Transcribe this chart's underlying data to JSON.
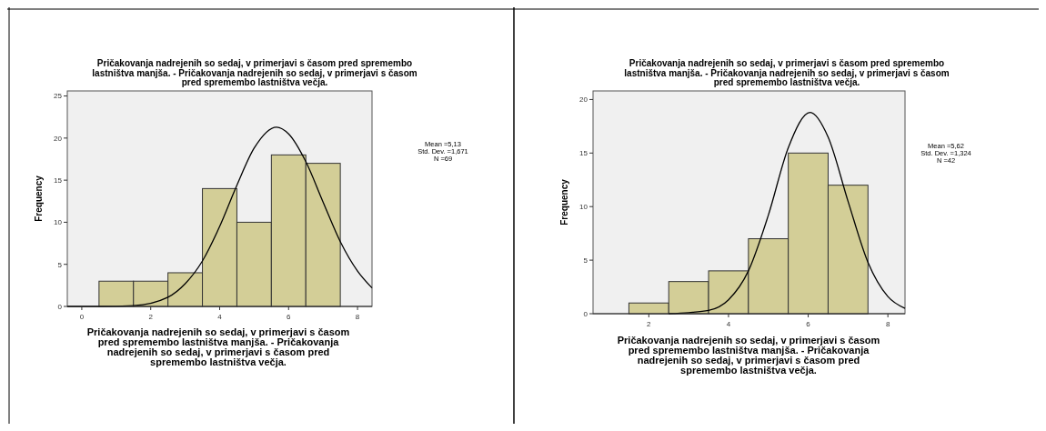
{
  "chart_data": [
    {
      "type": "histogram",
      "title": "Pričakovanja nadrejenih so sedaj, v primerjavi s časom pred spremembo lastništva manjša. - Pričakovanja nadrejenih so sedaj, v primerjavi s časom pred spremembo lastništva večja.",
      "xlabel": "Pričakovanja nadrejenih so sedaj, v primerjavi s časom pred spremembo lastništva manjša. - Pričakovanja nadrejenih so sedaj, v primerjavi s časom pred spremembo lastništva večja.",
      "ylabel": "Frequency",
      "annotations": [
        "Mean =5,13",
        "Std. Dev. =1,671",
        "N =69"
      ],
      "bins": [
        0.5,
        1.5,
        2.5,
        3.5,
        4.5,
        5.5,
        6.5,
        7.5
      ],
      "xlim": [
        -0.42,
        8.42
      ],
      "xticks": [
        0,
        2,
        4,
        6,
        8
      ],
      "ylim": [
        0,
        25.6
      ],
      "yticks": [
        0,
        5,
        10,
        15,
        20,
        25
      ],
      "series": [
        {
          "color": "#d3ce97",
          "values": [
            3,
            3,
            4,
            14,
            10,
            18,
            17
          ]
        },
        {
          "type": "line",
          "color": "#000000",
          "x": [
            -0.42,
            0.5,
            1.5,
            2.5,
            3,
            3.5,
            4,
            4.5,
            5,
            5.65,
            6,
            6.5,
            7,
            7.5,
            8,
            8.42
          ],
          "values": [
            0,
            0,
            0.1,
            1.1,
            2.7,
            5.4,
            9.5,
            14.4,
            18.8,
            21.3,
            20.5,
            17.2,
            12.4,
            7.7,
            4.2,
            2.2
          ]
        }
      ]
    },
    {
      "type": "histogram",
      "title": "Pričakovanja nadrejenih so sedaj, v primerjavi s časom pred spremembo lastništva manjša. - Pričakovanja nadrejenih so sedaj, v primerjavi s časom pred spremembo lastništva večja.",
      "xlabel": "Pričakovanja nadrejenih so sedaj, v primerjavi s časom pred spremembo lastništva manjša. - Pričakovanja nadrejenih so sedaj, v primerjavi s časom pred spremembo lastništva večja.",
      "ylabel": "Frequency",
      "annotations": [
        "Mean =5,62",
        "Std. Dev. =1,324",
        "N =42"
      ],
      "bins": [
        1.5,
        2.5,
        3.5,
        4.5,
        5.5,
        6.5,
        7.5
      ],
      "xlim": [
        0.6,
        8.43
      ],
      "xticks": [
        2,
        4,
        6,
        8
      ],
      "ylim": [
        0,
        20.8
      ],
      "yticks": [
        0,
        5,
        10,
        15,
        20
      ],
      "series": [
        {
          "color": "#d3ce97",
          "values": [
            1,
            3,
            4,
            7,
            15,
            12
          ]
        },
        {
          "type": "line",
          "color": "#000000",
          "x": [
            2.5,
            3,
            3.5,
            4,
            4.5,
            5,
            5.5,
            6.05,
            6.5,
            7,
            7.5,
            8,
            8.43
          ],
          "values": [
            0,
            0.1,
            0.3,
            1.3,
            4,
            9.2,
            15.5,
            18.8,
            16.5,
            10.5,
            4.8,
            1.6,
            0.5
          ]
        }
      ]
    }
  ]
}
